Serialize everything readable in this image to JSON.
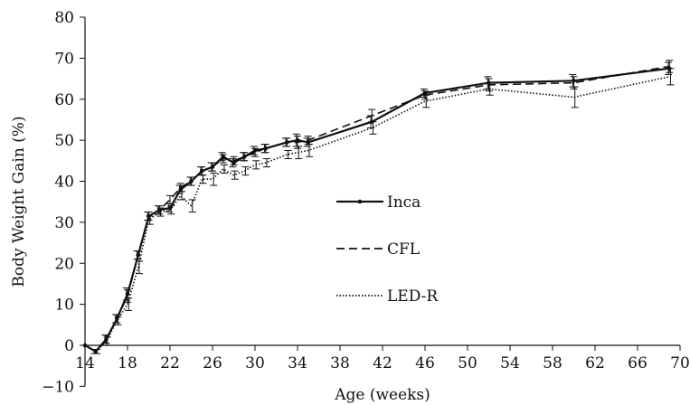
{
  "chart_data": {
    "type": "line",
    "title": "",
    "xlabel": "Age (weeks)",
    "ylabel": "Body Weight Gain (%)",
    "xlim": [
      14,
      70
    ],
    "ylim": [
      -10,
      80
    ],
    "x_ticks": [
      14,
      18,
      22,
      26,
      30,
      34,
      38,
      42,
      46,
      50,
      54,
      58,
      62,
      66,
      70
    ],
    "y_ticks": [
      -10,
      0,
      10,
      20,
      30,
      40,
      50,
      60,
      70,
      80
    ],
    "grid": false,
    "legend_position": "center-right",
    "error_bars": true,
    "series": [
      {
        "name": "Inca",
        "color": "#111111",
        "line_style": "solid",
        "marker": "dot",
        "points": [
          {
            "x": 14,
            "y": 0,
            "err": 0
          },
          {
            "x": 15,
            "y": -1.5,
            "err": 0.5
          },
          {
            "x": 16,
            "y": 1.5,
            "err": 1
          },
          {
            "x": 17,
            "y": 6.5,
            "err": 1
          },
          {
            "x": 18,
            "y": 12.5,
            "err": 1.5
          },
          {
            "x": 19,
            "y": 22,
            "err": 1
          },
          {
            "x": 20,
            "y": 31.5,
            "err": 1
          },
          {
            "x": 21,
            "y": 33,
            "err": 1
          },
          {
            "x": 22,
            "y": 33.5,
            "err": 1
          },
          {
            "x": 23,
            "y": 38,
            "err": 1
          },
          {
            "x": 24,
            "y": 40,
            "err": 1
          },
          {
            "x": 25,
            "y": 42.5,
            "err": 1
          },
          {
            "x": 26,
            "y": 43.5,
            "err": 1
          },
          {
            "x": 27,
            "y": 46,
            "err": 1
          },
          {
            "x": 28,
            "y": 44.5,
            "err": 1
          },
          {
            "x": 29,
            "y": 46,
            "err": 1
          },
          {
            "x": 30,
            "y": 47.5,
            "err": 1
          },
          {
            "x": 31,
            "y": 48,
            "err": 1
          },
          {
            "x": 33,
            "y": 49.5,
            "err": 1
          },
          {
            "x": 34,
            "y": 50,
            "err": 1.5
          },
          {
            "x": 35,
            "y": 49.5,
            "err": 1
          },
          {
            "x": 41,
            "y": 54.5,
            "err": 1.5
          },
          {
            "x": 46,
            "y": 61.5,
            "err": 1
          },
          {
            "x": 52,
            "y": 64,
            "err": 1.5
          },
          {
            "x": 60,
            "y": 64.5,
            "err": 1.5
          },
          {
            "x": 69,
            "y": 67.5,
            "err": 1.5
          }
        ]
      },
      {
        "name": "CFL",
        "color": "#111111",
        "line_style": "dashed",
        "marker": "none",
        "points": [
          {
            "x": 14,
            "y": 0,
            "err": 0
          },
          {
            "x": 15,
            "y": -1.5,
            "err": 0.5
          },
          {
            "x": 16,
            "y": 1.5,
            "err": 1
          },
          {
            "x": 17,
            "y": 6.5,
            "err": 1
          },
          {
            "x": 18,
            "y": 12,
            "err": 1.5
          },
          {
            "x": 19,
            "y": 22,
            "err": 1
          },
          {
            "x": 20,
            "y": 31.5,
            "err": 1
          },
          {
            "x": 21,
            "y": 33,
            "err": 1
          },
          {
            "x": 22,
            "y": 35.5,
            "err": 1
          },
          {
            "x": 23,
            "y": 38.5,
            "err": 1
          },
          {
            "x": 24,
            "y": 40,
            "err": 1
          },
          {
            "x": 25,
            "y": 42.5,
            "err": 1
          },
          {
            "x": 26,
            "y": 43.5,
            "err": 1
          },
          {
            "x": 27,
            "y": 45.5,
            "err": 1
          },
          {
            "x": 28,
            "y": 45,
            "err": 1
          },
          {
            "x": 29,
            "y": 46,
            "err": 1
          },
          {
            "x": 30,
            "y": 47,
            "err": 1
          },
          {
            "x": 31,
            "y": 48,
            "err": 1
          },
          {
            "x": 33,
            "y": 49.5,
            "err": 1
          },
          {
            "x": 34,
            "y": 49.5,
            "err": 1.5
          },
          {
            "x": 35,
            "y": 50,
            "err": 1
          },
          {
            "x": 41,
            "y": 56,
            "err": 1.5
          },
          {
            "x": 46,
            "y": 61,
            "err": 1
          },
          {
            "x": 52,
            "y": 63.5,
            "err": 1.5
          },
          {
            "x": 60,
            "y": 64,
            "err": 1.5
          },
          {
            "x": 69,
            "y": 68,
            "err": 1.5
          }
        ]
      },
      {
        "name": "LED-R",
        "color": "#111111",
        "line_style": "dotted",
        "marker": "none",
        "points": [
          {
            "x": 14,
            "y": 0,
            "err": 0
          },
          {
            "x": 15,
            "y": -1.5,
            "err": 0.5
          },
          {
            "x": 16,
            "y": 1,
            "err": 1
          },
          {
            "x": 17,
            "y": 6,
            "err": 1
          },
          {
            "x": 18,
            "y": 10,
            "err": 1.5
          },
          {
            "x": 19,
            "y": 19,
            "err": 1.5
          },
          {
            "x": 20,
            "y": 30.5,
            "err": 1
          },
          {
            "x": 21,
            "y": 32.5,
            "err": 1
          },
          {
            "x": 22,
            "y": 33,
            "err": 1
          },
          {
            "x": 23,
            "y": 36.5,
            "err": 1
          },
          {
            "x": 24,
            "y": 34,
            "err": 1.5
          },
          {
            "x": 25,
            "y": 40.5,
            "err": 1
          },
          {
            "x": 26,
            "y": 40.5,
            "err": 1.5
          },
          {
            "x": 27,
            "y": 43,
            "err": 1
          },
          {
            "x": 28,
            "y": 41.5,
            "err": 1
          },
          {
            "x": 29,
            "y": 42.5,
            "err": 1
          },
          {
            "x": 30,
            "y": 44,
            "err": 1
          },
          {
            "x": 31,
            "y": 44.5,
            "err": 1
          },
          {
            "x": 33,
            "y": 46.5,
            "err": 1
          },
          {
            "x": 34,
            "y": 47,
            "err": 1.5
          },
          {
            "x": 35,
            "y": 47.5,
            "err": 1.5
          },
          {
            "x": 41,
            "y": 53,
            "err": 1.5
          },
          {
            "x": 46,
            "y": 59.5,
            "err": 1.5
          },
          {
            "x": 52,
            "y": 62.5,
            "err": 1.5
          },
          {
            "x": 60,
            "y": 60.5,
            "err": 2.5
          },
          {
            "x": 69,
            "y": 65.5,
            "err": 2
          }
        ]
      }
    ]
  }
}
